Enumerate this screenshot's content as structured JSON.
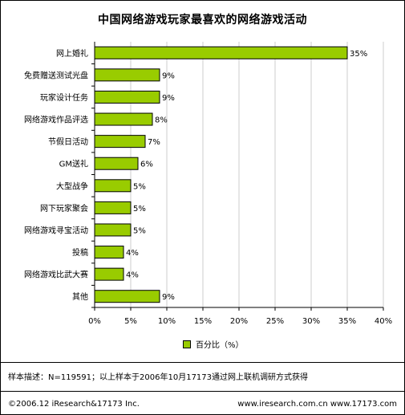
{
  "title": "中国网络游戏玩家最喜欢的网络游戏活动",
  "chart_data": {
    "type": "bar",
    "orientation": "horizontal",
    "categories": [
      "网上婚礼",
      "免费赠送测试光盘",
      "玩家设计任务",
      "网络游戏作品评选",
      "节假日活动",
      "GM送礼",
      "大型战争",
      "网下玩家聚会",
      "网络游戏寻宝活动",
      "投稿",
      "网络游戏比武大赛",
      "其他"
    ],
    "values": [
      35,
      9,
      9,
      8,
      7,
      6,
      5,
      5,
      5,
      4,
      4,
      9
    ],
    "value_labels": [
      "35%",
      "9%",
      "9%",
      "8%",
      "7%",
      "6%",
      "5%",
      "5%",
      "5%",
      "4%",
      "4%",
      "9%"
    ],
    "xlim": [
      0,
      40
    ],
    "x_ticks": [
      "0%",
      "5%",
      "10%",
      "15%",
      "20%",
      "25%",
      "30%",
      "35%",
      "40%"
    ],
    "grid": true,
    "bar_color": "#99cc00",
    "legend": "bottom",
    "series": [
      {
        "name": "百分比（%）",
        "values": [
          35,
          9,
          9,
          8,
          7,
          6,
          5,
          5,
          5,
          4,
          4,
          9
        ]
      }
    ]
  },
  "legend_label": "百分比（%）",
  "note": "样本描述：N=119591；以上样本于2006年10月17173通过网上联机调研方式获得",
  "footer_left": "©2006.12 iResearch&17173 Inc.",
  "footer_right": "www.iresearch.com.cn  www.17173.com"
}
